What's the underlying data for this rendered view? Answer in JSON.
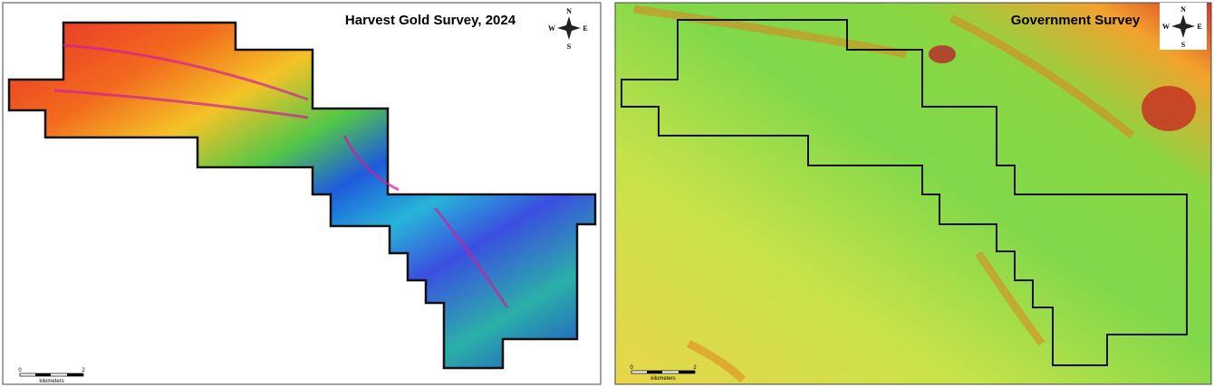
{
  "panels": [
    {
      "title": "Harvest Gold Survey, 2024",
      "compass": {
        "n": "N",
        "e": "E",
        "s": "S",
        "w": "W"
      },
      "scale": {
        "start": "0",
        "end": "2",
        "unit": "kilometers"
      }
    },
    {
      "title": "Government Survey",
      "compass": {
        "n": "N",
        "e": "E",
        "s": "S",
        "w": "W"
      },
      "scale": {
        "start": "0",
        "end": "2",
        "unit": "kilometers"
      }
    }
  ]
}
